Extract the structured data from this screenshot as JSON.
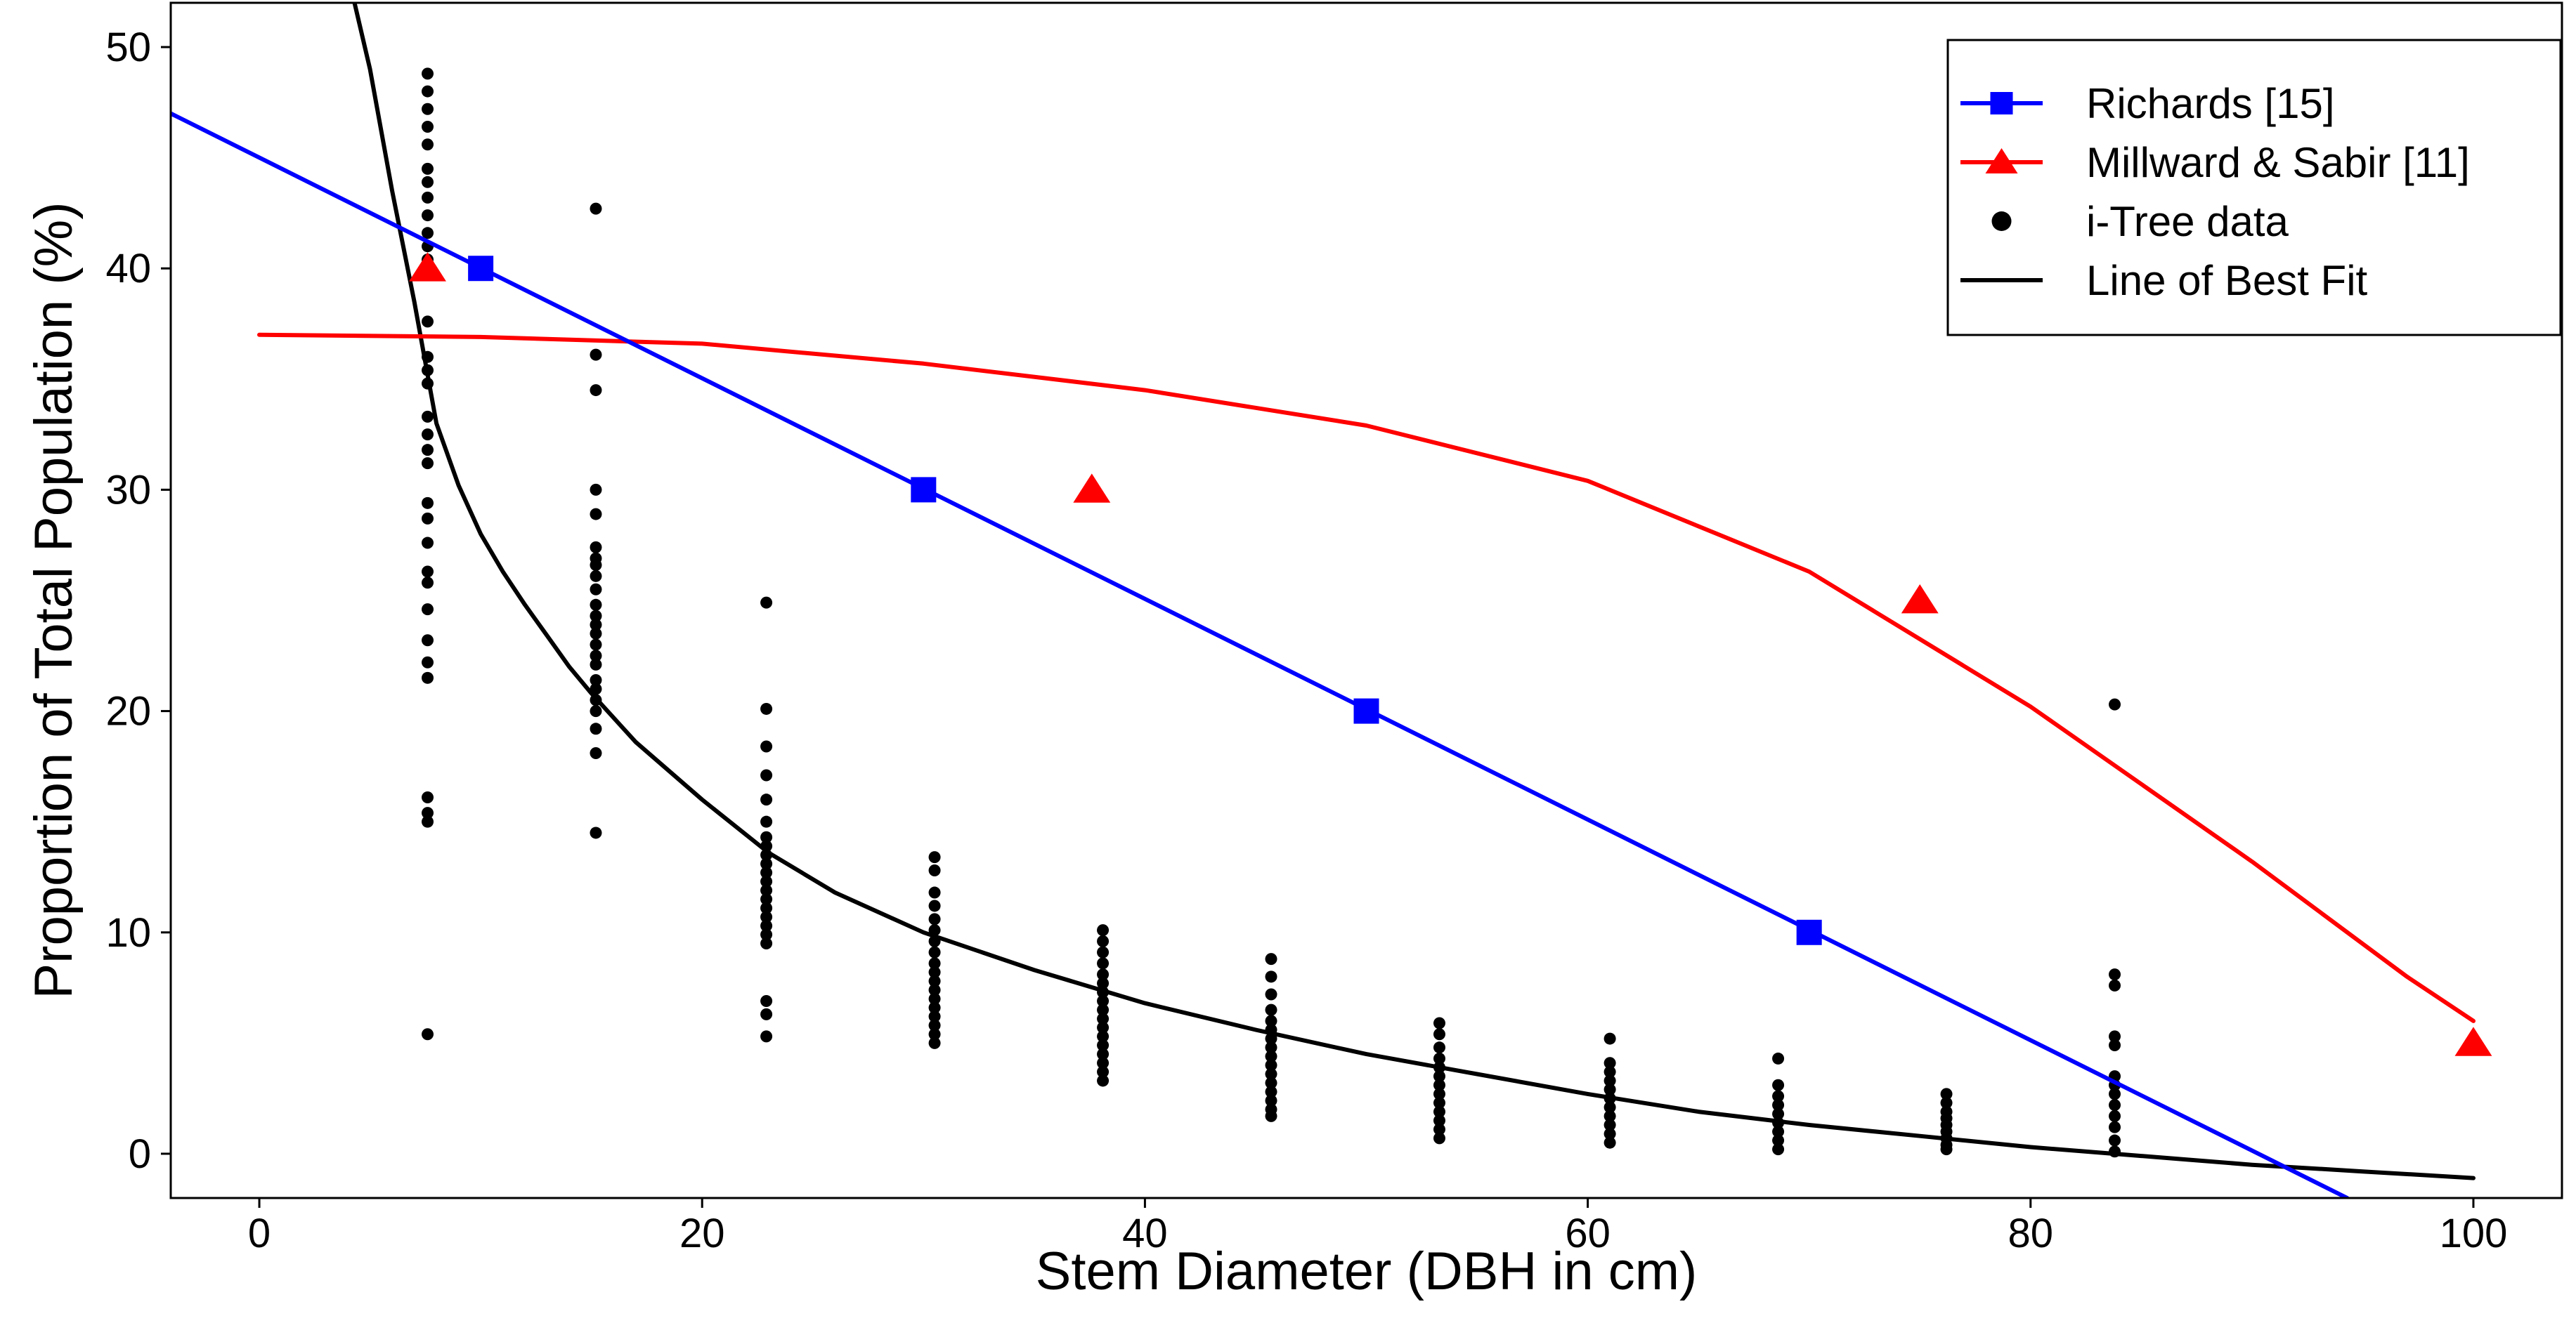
{
  "chart_data": {
    "type": "scatter",
    "title": "",
    "xlabel": "Stem Diameter (DBH in cm)",
    "ylabel": "Proportion of Total Population (%)",
    "xlim": [
      -4,
      104
    ],
    "ylim": [
      -2,
      52
    ],
    "xticks": [
      0,
      20,
      40,
      60,
      80,
      100
    ],
    "yticks": [
      0,
      10,
      20,
      30,
      40,
      50
    ],
    "grid": false,
    "legend_position": "top-right",
    "series": [
      {
        "name": "Richards [15]",
        "kind": "line-markers",
        "marker": "square",
        "color": "#0000FF",
        "points": [
          [
            10,
            40
          ],
          [
            30,
            30
          ],
          [
            50,
            20
          ],
          [
            70,
            10
          ]
        ],
        "line": [
          [
            -4,
            47
          ],
          [
            94.3,
            -2
          ]
        ]
      },
      {
        "name": "Millward & Sabir [11]",
        "kind": "line-markers",
        "marker": "triangle",
        "color": "#FF0000",
        "points": [
          [
            7.6,
            40
          ],
          [
            37.6,
            30
          ],
          [
            75,
            25
          ],
          [
            100,
            5
          ]
        ],
        "line": [
          [
            0,
            37
          ],
          [
            10,
            36.9
          ],
          [
            20,
            36.6
          ],
          [
            30,
            35.7
          ],
          [
            40,
            34.5
          ],
          [
            50,
            32.9
          ],
          [
            60,
            30.4
          ],
          [
            70,
            26.3
          ],
          [
            80,
            20.2
          ],
          [
            90,
            13.2
          ],
          [
            97,
            8
          ],
          [
            100,
            6
          ]
        ]
      },
      {
        "name": "i-Tree data",
        "kind": "points",
        "marker": "circle",
        "color": "#000000",
        "points": [
          [
            7.6,
            48.8
          ],
          [
            7.6,
            48.0
          ],
          [
            7.6,
            47.2
          ],
          [
            7.6,
            46.4
          ],
          [
            7.6,
            45.6
          ],
          [
            7.6,
            44.5
          ],
          [
            7.6,
            43.9
          ],
          [
            7.6,
            43.2
          ],
          [
            7.6,
            42.4
          ],
          [
            7.6,
            41.6
          ],
          [
            7.6,
            41.0
          ],
          [
            7.6,
            40.4
          ],
          [
            7.6,
            39.9
          ],
          [
            7.6,
            37.6
          ],
          [
            7.6,
            36.0
          ],
          [
            7.6,
            35.4
          ],
          [
            7.6,
            34.8
          ],
          [
            7.6,
            33.3
          ],
          [
            7.6,
            32.5
          ],
          [
            7.6,
            31.8
          ],
          [
            7.6,
            31.2
          ],
          [
            7.6,
            29.4
          ],
          [
            7.6,
            28.7
          ],
          [
            7.6,
            27.6
          ],
          [
            7.6,
            26.3
          ],
          [
            7.6,
            25.8
          ],
          [
            7.6,
            24.6
          ],
          [
            7.6,
            23.2
          ],
          [
            7.6,
            22.2
          ],
          [
            7.6,
            21.5
          ],
          [
            7.6,
            16.1
          ],
          [
            7.6,
            15.4
          ],
          [
            7.6,
            15.0
          ],
          [
            7.6,
            5.4
          ],
          [
            15.2,
            42.7
          ],
          [
            15.2,
            36.1
          ],
          [
            15.2,
            34.5
          ],
          [
            15.2,
            30.0
          ],
          [
            15.2,
            28.9
          ],
          [
            15.2,
            27.4
          ],
          [
            15.2,
            26.9
          ],
          [
            15.2,
            26.6
          ],
          [
            15.2,
            26.1
          ],
          [
            15.2,
            25.5
          ],
          [
            15.2,
            24.8
          ],
          [
            15.2,
            24.3
          ],
          [
            15.2,
            23.9
          ],
          [
            15.2,
            23.5
          ],
          [
            15.2,
            23.0
          ],
          [
            15.2,
            22.5
          ],
          [
            15.2,
            22.1
          ],
          [
            15.2,
            21.4
          ],
          [
            15.2,
            21.0
          ],
          [
            15.2,
            20.5
          ],
          [
            15.2,
            20.0
          ],
          [
            15.2,
            19.2
          ],
          [
            15.2,
            18.1
          ],
          [
            15.2,
            14.5
          ],
          [
            22.9,
            24.9
          ],
          [
            22.9,
            20.1
          ],
          [
            22.9,
            18.4
          ],
          [
            22.9,
            17.1
          ],
          [
            22.9,
            16.0
          ],
          [
            22.9,
            15.0
          ],
          [
            22.9,
            14.3
          ],
          [
            22.9,
            13.9
          ],
          [
            22.9,
            13.5
          ],
          [
            22.9,
            13.1
          ],
          [
            22.9,
            12.7
          ],
          [
            22.9,
            12.3
          ],
          [
            22.9,
            11.9
          ],
          [
            22.9,
            11.5
          ],
          [
            22.9,
            11.1
          ],
          [
            22.9,
            10.7
          ],
          [
            22.9,
            10.3
          ],
          [
            22.9,
            9.9
          ],
          [
            22.9,
            9.5
          ],
          [
            22.9,
            6.9
          ],
          [
            22.9,
            6.3
          ],
          [
            22.9,
            5.3
          ],
          [
            30.5,
            13.4
          ],
          [
            30.5,
            12.8
          ],
          [
            30.5,
            11.8
          ],
          [
            30.5,
            11.2
          ],
          [
            30.5,
            10.6
          ],
          [
            30.5,
            10.1
          ],
          [
            30.5,
            9.6
          ],
          [
            30.5,
            9.1
          ],
          [
            30.5,
            8.6
          ],
          [
            30.5,
            8.2
          ],
          [
            30.5,
            7.8
          ],
          [
            30.5,
            7.4
          ],
          [
            30.5,
            7.0
          ],
          [
            30.5,
            6.6
          ],
          [
            30.5,
            6.2
          ],
          [
            30.5,
            5.8
          ],
          [
            30.5,
            5.4
          ],
          [
            30.5,
            5.0
          ],
          [
            38.1,
            10.1
          ],
          [
            38.1,
            9.6
          ],
          [
            38.1,
            9.1
          ],
          [
            38.1,
            8.6
          ],
          [
            38.1,
            8.1
          ],
          [
            38.1,
            7.7
          ],
          [
            38.1,
            7.3
          ],
          [
            38.1,
            6.9
          ],
          [
            38.1,
            6.5
          ],
          [
            38.1,
            6.1
          ],
          [
            38.1,
            5.7
          ],
          [
            38.1,
            5.3
          ],
          [
            38.1,
            4.9
          ],
          [
            38.1,
            4.5
          ],
          [
            38.1,
            4.1
          ],
          [
            38.1,
            3.7
          ],
          [
            38.1,
            3.3
          ],
          [
            45.7,
            8.8
          ],
          [
            45.7,
            8.0
          ],
          [
            45.7,
            7.2
          ],
          [
            45.7,
            6.5
          ],
          [
            45.7,
            6.0
          ],
          [
            45.7,
            5.6
          ],
          [
            45.7,
            5.2
          ],
          [
            45.7,
            4.8
          ],
          [
            45.7,
            4.4
          ],
          [
            45.7,
            4.0
          ],
          [
            45.7,
            3.6
          ],
          [
            45.7,
            3.2
          ],
          [
            45.7,
            2.8
          ],
          [
            45.7,
            2.4
          ],
          [
            45.7,
            2.0
          ],
          [
            45.7,
            1.7
          ],
          [
            53.3,
            5.9
          ],
          [
            53.3,
            5.4
          ],
          [
            53.3,
            4.8
          ],
          [
            53.3,
            4.3
          ],
          [
            53.3,
            3.9
          ],
          [
            53.3,
            3.5
          ],
          [
            53.3,
            3.1
          ],
          [
            53.3,
            2.7
          ],
          [
            53.3,
            2.3
          ],
          [
            53.3,
            1.9
          ],
          [
            53.3,
            1.5
          ],
          [
            53.3,
            1.1
          ],
          [
            53.3,
            0.7
          ],
          [
            61.0,
            5.2
          ],
          [
            61.0,
            4.1
          ],
          [
            61.0,
            3.7
          ],
          [
            61.0,
            3.3
          ],
          [
            61.0,
            2.9
          ],
          [
            61.0,
            2.5
          ],
          [
            61.0,
            2.1
          ],
          [
            61.0,
            1.7
          ],
          [
            61.0,
            1.3
          ],
          [
            61.0,
            0.9
          ],
          [
            61.0,
            0.5
          ],
          [
            68.6,
            4.3
          ],
          [
            68.6,
            3.1
          ],
          [
            68.6,
            2.6
          ],
          [
            68.6,
            2.2
          ],
          [
            68.6,
            1.8
          ],
          [
            68.6,
            1.4
          ],
          [
            68.6,
            1.0
          ],
          [
            68.6,
            0.6
          ],
          [
            68.6,
            0.2
          ],
          [
            76.2,
            2.7
          ],
          [
            76.2,
            2.3
          ],
          [
            76.2,
            1.9
          ],
          [
            76.2,
            1.6
          ],
          [
            76.2,
            1.3
          ],
          [
            76.2,
            1.0
          ],
          [
            76.2,
            0.7
          ],
          [
            76.2,
            0.4
          ],
          [
            76.2,
            0.2
          ],
          [
            83.8,
            20.3
          ],
          [
            83.8,
            8.1
          ],
          [
            83.8,
            7.6
          ],
          [
            83.8,
            5.3
          ],
          [
            83.8,
            4.9
          ],
          [
            83.8,
            3.5
          ],
          [
            83.8,
            3.1
          ],
          [
            83.8,
            2.7
          ],
          [
            83.8,
            2.2
          ],
          [
            83.8,
            1.7
          ],
          [
            83.8,
            1.2
          ],
          [
            83.8,
            0.6
          ],
          [
            83.8,
            0.1
          ]
        ]
      },
      {
        "name": "Line of Best Fit",
        "kind": "line",
        "color": "#000000",
        "line": [
          [
            4.3,
            52
          ],
          [
            5,
            49
          ],
          [
            6,
            43.5
          ],
          [
            7,
            38.5
          ],
          [
            8,
            33
          ],
          [
            9,
            30.2
          ],
          [
            10,
            28
          ],
          [
            11,
            26.3
          ],
          [
            12,
            24.8
          ],
          [
            13,
            23.4
          ],
          [
            14,
            22.0
          ],
          [
            15,
            20.8
          ],
          [
            17,
            18.6
          ],
          [
            20,
            16.0
          ],
          [
            23,
            13.6
          ],
          [
            26,
            11.8
          ],
          [
            30,
            10.0
          ],
          [
            35,
            8.3
          ],
          [
            40,
            6.8
          ],
          [
            45,
            5.6
          ],
          [
            50,
            4.5
          ],
          [
            55,
            3.6
          ],
          [
            60,
            2.7
          ],
          [
            65,
            1.9
          ],
          [
            70,
            1.3
          ],
          [
            75,
            0.8
          ],
          [
            80,
            0.3
          ],
          [
            85,
            -0.1
          ],
          [
            90,
            -0.5
          ],
          [
            95,
            -0.8
          ],
          [
            100,
            -1.1
          ]
        ]
      }
    ]
  }
}
